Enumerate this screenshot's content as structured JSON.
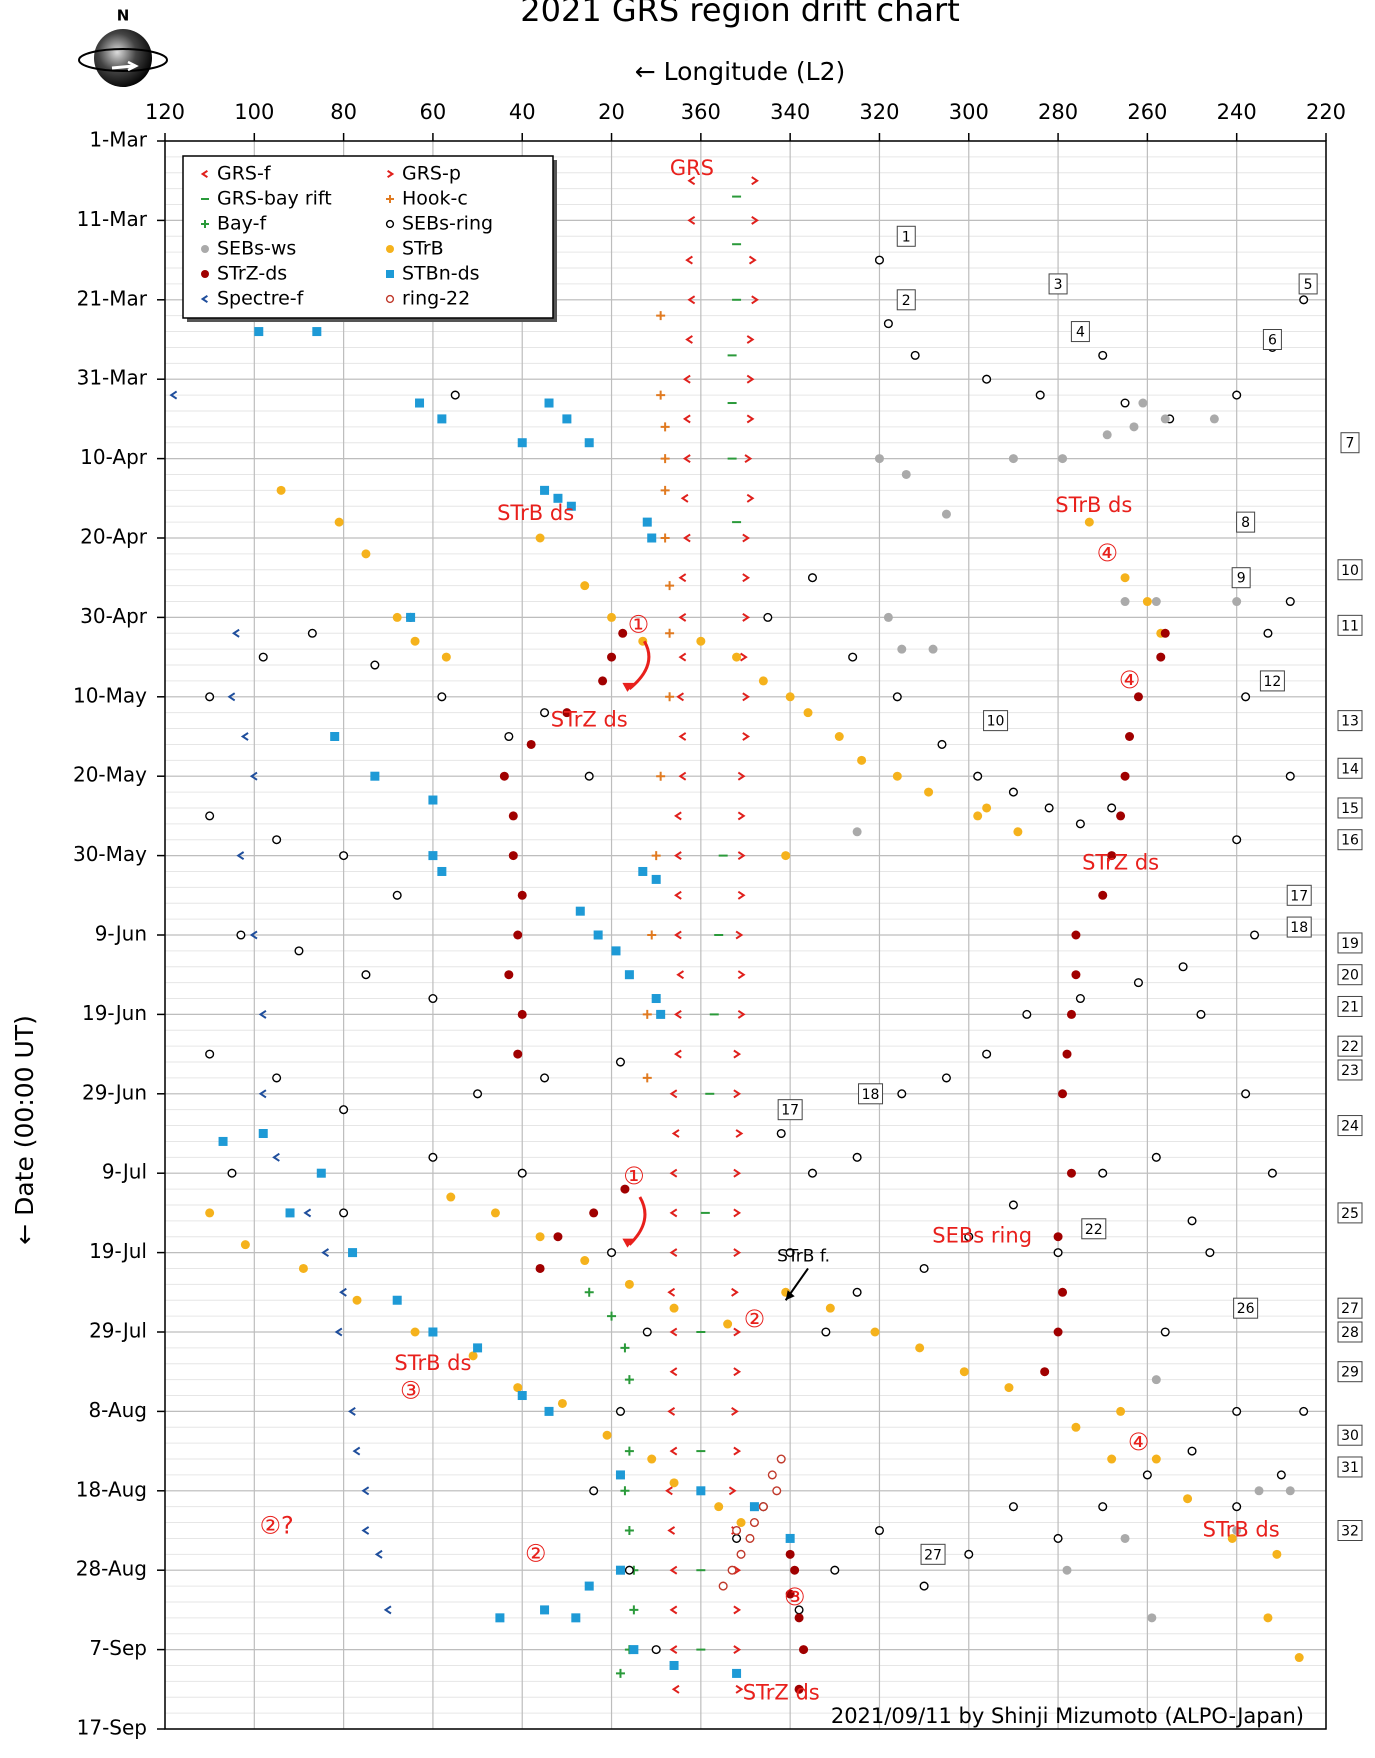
{
  "chart_data": {
    "type": "scatter",
    "title": "2021 GRS region drift chart",
    "x_label": "← Longitude (L2)",
    "y_label": "← Date (00:00 UT)",
    "credit": "2021/09/11  by Shinji Mizumoto (ALPO-Japan)",
    "xlim": [
      480,
      220
    ],
    "xticks": [
      {
        "value": 480,
        "label": "120"
      },
      {
        "value": 460,
        "label": "100"
      },
      {
        "value": 440,
        "label": "80"
      },
      {
        "value": 420,
        "label": "60"
      },
      {
        "value": 400,
        "label": "40"
      },
      {
        "value": 380,
        "label": "20"
      },
      360,
      340,
      320,
      300,
      280,
      260,
      240,
      220
    ],
    "ylim": [
      0,
      200
    ],
    "yticks": [
      {
        "value": 0,
        "label": "1-Mar"
      },
      {
        "value": 10,
        "label": "11-Mar"
      },
      {
        "value": 20,
        "label": "21-Mar"
      },
      {
        "value": 30,
        "label": "31-Mar"
      },
      {
        "value": 40,
        "label": "10-Apr"
      },
      {
        "value": 50,
        "label": "20-Apr"
      },
      {
        "value": 60,
        "label": "30-Apr"
      },
      {
        "value": 70,
        "label": "10-May"
      },
      {
        "value": 80,
        "label": "20-May"
      },
      {
        "value": 90,
        "label": "30-May"
      },
      {
        "value": 100,
        "label": "9-Jun"
      },
      {
        "value": 110,
        "label": "19-Jun"
      },
      {
        "value": 120,
        "label": "29-Jun"
      },
      {
        "value": 130,
        "label": "9-Jul"
      },
      {
        "value": 140,
        "label": "19-Jul"
      },
      {
        "value": 150,
        "label": "29-Jul"
      },
      {
        "value": 160,
        "label": "8-Aug"
      },
      {
        "value": 170,
        "label": "18-Aug"
      },
      {
        "value": 180,
        "label": "28-Aug"
      },
      {
        "value": 190,
        "label": "7-Sep"
      },
      {
        "value": 200,
        "label": "17-Sep"
      }
    ],
    "grid": true,
    "legend": "upper left",
    "series": [
      {
        "name": "GRS-f",
        "color": "#e0201c",
        "marker": "<",
        "x": [
          362,
          362,
          362.5,
          362,
          362.5,
          363,
          363,
          363,
          363.5,
          363,
          364,
          364,
          364,
          364.5,
          364,
          364,
          365,
          365,
          365,
          365,
          364.5,
          365,
          365,
          366,
          365.5,
          366,
          366,
          366,
          366.5,
          366,
          366,
          366.5,
          366,
          367,
          366.5,
          366,
          366,
          366,
          365.5
        ],
        "values": [
          5,
          10,
          15,
          20,
          25,
          30,
          35,
          40,
          45,
          50,
          55,
          60,
          65,
          70,
          75,
          80,
          85,
          90,
          95,
          100,
          105,
          110,
          115,
          120,
          125,
          130,
          135,
          140,
          145,
          150,
          155,
          160,
          165,
          170,
          175,
          180,
          185,
          190,
          195
        ]
      },
      {
        "name": "GRS-p",
        "color": "#e0201c",
        "marker": ">",
        "x": [
          348,
          348,
          348.5,
          348,
          349,
          349,
          349,
          349.5,
          349,
          350,
          350,
          350,
          350.5,
          350,
          350,
          351,
          351,
          351,
          351,
          351.5,
          351,
          351,
          352,
          352,
          351.5,
          352,
          352,
          352,
          352.5,
          352,
          352,
          352.5,
          352,
          353,
          352.5,
          352,
          352,
          352,
          351.5
        ],
        "values": [
          5,
          10,
          15,
          20,
          25,
          30,
          35,
          40,
          45,
          50,
          55,
          60,
          65,
          70,
          75,
          80,
          85,
          90,
          95,
          100,
          105,
          110,
          115,
          120,
          125,
          130,
          135,
          140,
          145,
          150,
          155,
          160,
          165,
          170,
          175,
          180,
          185,
          190,
          195
        ]
      },
      {
        "name": "GRS-bay rift",
        "color": "#2a9a3a",
        "marker": "-",
        "x": [
          352,
          352,
          352,
          353,
          353,
          353,
          352,
          355,
          356,
          357,
          358,
          359,
          360,
          360,
          360,
          360
        ],
        "values": [
          7,
          13,
          20,
          27,
          33,
          40,
          48,
          90,
          100,
          110,
          120,
          135,
          150,
          165,
          180,
          190
        ]
      },
      {
        "name": "Hook-c",
        "color": "#e07a20",
        "marker": "+",
        "x": [
          369,
          369,
          368,
          368,
          368,
          368,
          367,
          367,
          367,
          369,
          370,
          371,
          372,
          372
        ],
        "values": [
          22,
          32,
          36,
          40,
          44,
          50,
          56,
          62,
          70,
          80,
          90,
          100,
          110,
          118
        ]
      },
      {
        "name": "Bay-f",
        "color": "#2a9a3a",
        "marker": "+",
        "x": [
          385,
          380,
          377,
          376,
          378,
          376,
          377,
          376,
          375,
          375,
          376,
          378
        ],
        "values": [
          145,
          148,
          152,
          156,
          160,
          165,
          170,
          175,
          180,
          185,
          190,
          193
        ]
      },
      {
        "name": "SEBs-ring",
        "color": "#000000",
        "marker": "o",
        "x": [
          415,
          425,
          458,
          470,
          447,
          433,
          418,
          403,
          395,
          385,
          470,
          455,
          440,
          428,
          463,
          450,
          435,
          420,
          470,
          455,
          440,
          410,
          395,
          378,
          465,
          440,
          420,
          400,
          380,
          372,
          378,
          384,
          376,
          370,
          352,
          346,
          338,
          330,
          320,
          310,
          300,
          290,
          280,
          270,
          260,
          250,
          240,
          230,
          225,
          345,
          335,
          326,
          316,
          306,
          298,
          290,
          282,
          275,
          268,
          320,
          318,
          312,
          296,
          284,
          270,
          265,
          255,
          240,
          232,
          225,
          228,
          233,
          238,
          228,
          240,
          226,
          236,
          248,
          238,
          232,
          246,
          256,
          240,
          335,
          325,
          315,
          305,
          296,
          287,
          275,
          262,
          252,
          342,
          340,
          332,
          325,
          310,
          300,
          290,
          280,
          270,
          258,
          250
        ],
        "values": [
          32,
          60,
          65,
          70,
          62,
          66,
          70,
          75,
          72,
          80,
          85,
          88,
          90,
          95,
          100,
          102,
          105,
          108,
          115,
          118,
          122,
          120,
          118,
          116,
          130,
          135,
          128,
          130,
          140,
          150,
          160,
          170,
          180,
          190,
          176,
          172,
          185,
          180,
          175,
          182,
          178,
          172,
          176,
          172,
          168,
          165,
          172,
          168,
          160,
          60,
          55,
          65,
          70,
          76,
          80,
          82,
          84,
          86,
          84,
          15,
          23,
          27,
          30,
          32,
          27,
          33,
          35,
          32,
          26,
          20,
          58,
          62,
          70,
          80,
          88,
          95,
          100,
          110,
          120,
          130,
          140,
          150,
          160,
          130,
          128,
          120,
          118,
          115,
          110,
          108,
          106,
          104,
          125,
          140,
          150,
          145,
          142,
          138,
          134,
          140,
          130,
          128,
          136
        ]
      },
      {
        "name": "SEBs-ws",
        "color": "#aaaaaa",
        "marker": "disc",
        "x": [
          261,
          256,
          245,
          269,
          263,
          290,
          279,
          315,
          318,
          308,
          240,
          265,
          258,
          325,
          278,
          265,
          240,
          235,
          228,
          258,
          259,
          320,
          314,
          305
        ],
        "values": [
          33,
          35,
          35,
          37,
          36,
          40,
          40,
          64,
          60,
          64,
          58,
          58,
          58,
          87,
          180,
          176,
          175,
          170,
          170,
          156,
          186,
          40,
          42,
          47
        ]
      },
      {
        "name": "STrB",
        "color": "#f5b21c",
        "marker": "disc",
        "x": [
          454,
          441,
          435,
          428,
          424,
          417,
          396,
          386,
          380,
          373,
          360,
          352,
          346,
          340,
          336,
          329,
          324,
          316,
          309,
          296,
          289,
          470,
          462,
          449,
          437,
          424,
          411,
          401,
          391,
          381,
          371,
          366,
          356,
          351,
          416,
          406,
          396,
          386,
          376,
          366,
          354,
          341,
          331,
          321,
          311,
          301,
          291,
          276,
          266,
          273,
          265,
          260,
          257,
          268,
          258,
          251,
          241,
          231,
          233,
          226,
          298,
          341
        ],
        "values": [
          44,
          48,
          52,
          60,
          63,
          65,
          50,
          56,
          60,
          63,
          63,
          65,
          68,
          70,
          72,
          75,
          78,
          80,
          82,
          84,
          87,
          135,
          139,
          142,
          146,
          150,
          153,
          157,
          159,
          163,
          166,
          169,
          172,
          174,
          133,
          135,
          138,
          141,
          144,
          147,
          149,
          145,
          147,
          150,
          152,
          155,
          157,
          162,
          160,
          48,
          55,
          58,
          62,
          166,
          166,
          171,
          176,
          178,
          186,
          191,
          85,
          90
        ]
      },
      {
        "name": "STrZ-ds",
        "color": "#a00000",
        "marker": "disc",
        "x": [
          377.5,
          380,
          382,
          390,
          398,
          404,
          402,
          402,
          400,
          401,
          403,
          400,
          401,
          377,
          384,
          392,
          396,
          256,
          257,
          262,
          264,
          265,
          266,
          268,
          270,
          276,
          276,
          277,
          278,
          279,
          277,
          280,
          279,
          280,
          283,
          340,
          339,
          340,
          338,
          337,
          338
        ],
        "values": [
          62,
          65,
          68,
          72,
          76,
          80,
          85,
          90,
          95,
          100,
          105,
          110,
          115,
          132,
          135,
          138,
          142,
          62,
          65,
          70,
          75,
          80,
          85,
          90,
          95,
          100,
          105,
          110,
          115,
          120,
          130,
          138,
          145,
          150,
          155,
          178,
          180,
          183,
          186,
          190,
          195
        ]
      },
      {
        "name": "STBn-ds",
        "color": "#1e9ad6",
        "marker": "square",
        "x": [
          459,
          446,
          423,
          418,
          400,
          394,
          390,
          385,
          395,
          392,
          389,
          372,
          371,
          425,
          442,
          433,
          420,
          420,
          418,
          373,
          370,
          387,
          383,
          379,
          376,
          370,
          369,
          458,
          467,
          445,
          452,
          438,
          428,
          420,
          410,
          400,
          394,
          378,
          360,
          348,
          340,
          405,
          395,
          388,
          375,
          366,
          352,
          378,
          385
        ],
        "values": [
          24,
          24,
          33,
          35,
          38,
          33,
          35,
          38,
          44,
          45,
          46,
          48,
          50,
          60,
          75,
          80,
          83,
          90,
          92,
          92,
          93,
          97,
          100,
          102,
          105,
          108,
          110,
          125,
          126,
          130,
          135,
          140,
          146,
          150,
          152,
          158,
          160,
          168,
          170,
          172,
          176,
          186,
          185,
          186,
          190,
          192,
          193,
          180,
          182
        ]
      },
      {
        "name": "Spectre-f",
        "color": "#1f4e9c",
        "marker": "<",
        "x": [
          478,
          464,
          465,
          462,
          460,
          463,
          460,
          458,
          458,
          455,
          448,
          444,
          440,
          441,
          438,
          437,
          435,
          435,
          432,
          430
        ],
        "values": [
          32,
          62,
          70,
          75,
          80,
          90,
          100,
          110,
          120,
          128,
          135,
          140,
          145,
          150,
          160,
          165,
          170,
          175,
          178,
          185
        ]
      },
      {
        "name": "ring-22",
        "color": "#c0392b",
        "marker": "o",
        "x": [
          342,
          344,
          343,
          346,
          348,
          349,
          351,
          353,
          355,
          352
        ],
        "values": [
          166,
          168,
          170,
          172,
          174,
          176,
          178,
          180,
          182,
          175
        ]
      }
    ],
    "annotations": [
      "GRS",
      "STrB ds",
      "STrB ds",
      "STrZ ds",
      "STrZ ds",
      "SEBs ring",
      "STrB ds",
      "STrB ds",
      "STrZ ds",
      "①",
      "④",
      "④",
      "①",
      "②",
      "③",
      "④",
      "②?",
      "②",
      "③",
      "STrB f."
    ],
    "box_labels": [
      1,
      2,
      3,
      4,
      5,
      6,
      8,
      9,
      10,
      12,
      17,
      18,
      22,
      26,
      27,
      7,
      10,
      11,
      13,
      14,
      15,
      16,
      17,
      18,
      19,
      20,
      21,
      22,
      23,
      24,
      25,
      27,
      28,
      29,
      30,
      31,
      32
    ]
  }
}
